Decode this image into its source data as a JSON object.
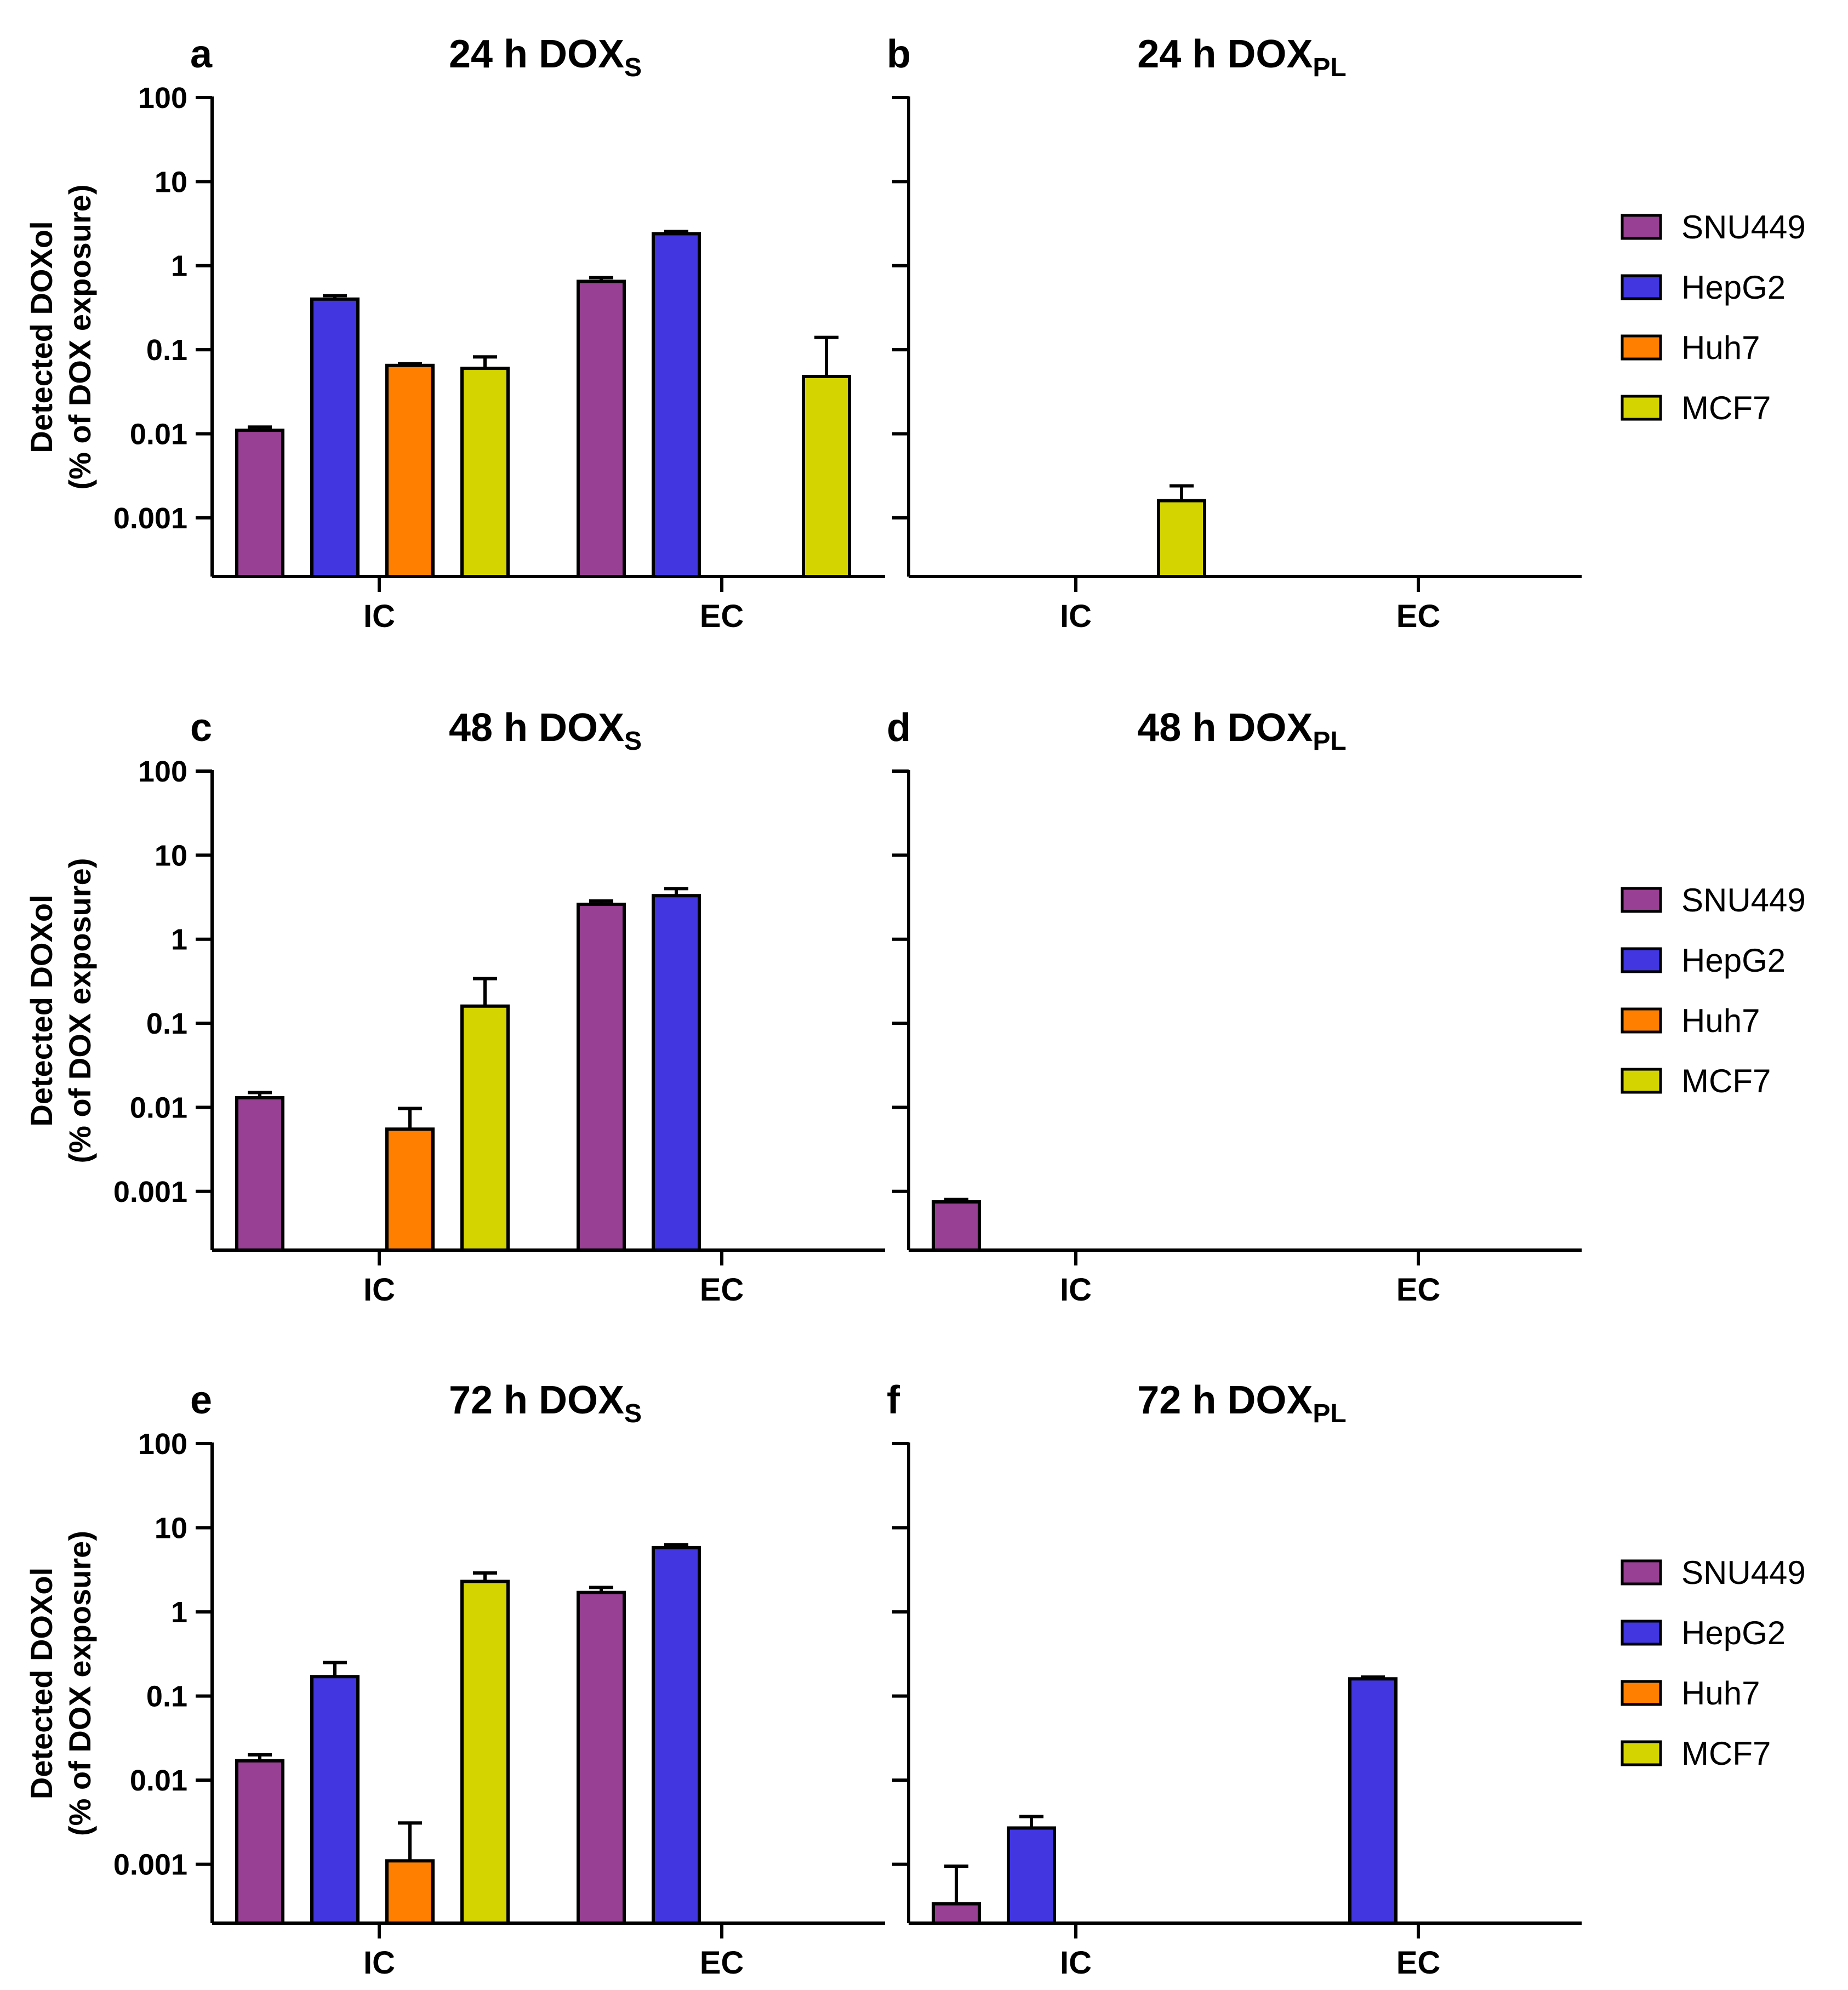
{
  "figure": {
    "y_axis_label_line1": "Detected DOXol",
    "y_axis_label_line2": "(% of DOX exposure)"
  },
  "chart_data": [
    {
      "type": "bar",
      "scale": "log",
      "panel": "a",
      "title": "24 h DOX",
      "title_subscript": "S",
      "categories": [
        "IC",
        "EC"
      ],
      "yticks": [
        "0.001",
        "0.01",
        "0.1",
        "1",
        "10",
        "100"
      ],
      "ylim": [
        0.0002,
        100
      ],
      "series": [
        {
          "name": "SNU449",
          "values": [
            0.011,
            0.65
          ],
          "errors": [
            0.012,
            0.72
          ]
        },
        {
          "name": "HepG2",
          "values": [
            0.4,
            2.4
          ],
          "errors": [
            0.44,
            2.55
          ]
        },
        {
          "name": "Huh7",
          "values": [
            0.065,
            null
          ],
          "errors": [
            0.068,
            null
          ]
        },
        {
          "name": "MCF7",
          "values": [
            0.06,
            0.048
          ],
          "errors": [
            0.082,
            0.14
          ]
        }
      ]
    },
    {
      "type": "bar",
      "scale": "log",
      "panel": "b",
      "title": "24 h DOX",
      "title_subscript": "PL",
      "categories": [
        "IC",
        "EC"
      ],
      "ylim": [
        0.0002,
        100
      ],
      "series": [
        {
          "name": "SNU449",
          "values": [
            null,
            null
          ],
          "errors": [
            null,
            null
          ]
        },
        {
          "name": "HepG2",
          "values": [
            null,
            null
          ],
          "errors": [
            null,
            null
          ]
        },
        {
          "name": "Huh7",
          "values": [
            null,
            null
          ],
          "errors": [
            null,
            null
          ]
        },
        {
          "name": "MCF7",
          "values": [
            0.0016,
            null
          ],
          "errors": [
            0.0024,
            null
          ]
        }
      ]
    },
    {
      "type": "bar",
      "scale": "log",
      "panel": "c",
      "title": "48 h DOX",
      "title_subscript": "S",
      "categories": [
        "IC",
        "EC"
      ],
      "yticks": [
        "0.001",
        "0.01",
        "0.1",
        "1",
        "10",
        "100"
      ],
      "ylim": [
        0.0002,
        100
      ],
      "series": [
        {
          "name": "SNU449",
          "values": [
            0.013,
            2.6
          ],
          "errors": [
            0.015,
            2.85
          ]
        },
        {
          "name": "HepG2",
          "values": [
            null,
            3.3
          ],
          "errors": [
            null,
            4.0
          ]
        },
        {
          "name": "Huh7",
          "values": [
            0.0055,
            null
          ],
          "errors": [
            0.0097,
            null
          ]
        },
        {
          "name": "MCF7",
          "values": [
            0.16,
            null
          ],
          "errors": [
            0.34,
            null
          ]
        }
      ]
    },
    {
      "type": "bar",
      "scale": "log",
      "panel": "d",
      "title": "48 h DOX",
      "title_subscript": "PL",
      "categories": [
        "IC",
        "EC"
      ],
      "ylim": [
        0.0002,
        100
      ],
      "series": [
        {
          "name": "SNU449",
          "values": [
            0.00075,
            null
          ],
          "errors": [
            0.0008,
            null
          ]
        },
        {
          "name": "HepG2",
          "values": [
            null,
            null
          ],
          "errors": [
            null,
            null
          ]
        },
        {
          "name": "Huh7",
          "values": [
            null,
            null
          ],
          "errors": [
            null,
            null
          ]
        },
        {
          "name": "MCF7",
          "values": [
            null,
            null
          ],
          "errors": [
            null,
            null
          ]
        }
      ]
    },
    {
      "type": "bar",
      "scale": "log",
      "panel": "e",
      "title": "72 h DOX",
      "title_subscript": "S",
      "categories": [
        "IC",
        "EC"
      ],
      "yticks": [
        "0.001",
        "0.01",
        "0.1",
        "1",
        "10",
        "100"
      ],
      "ylim": [
        0.0002,
        100
      ],
      "series": [
        {
          "name": "SNU449",
          "values": [
            0.017,
            1.7
          ],
          "errors": [
            0.02,
            1.95
          ]
        },
        {
          "name": "HepG2",
          "values": [
            0.17,
            5.8
          ],
          "errors": [
            0.25,
            6.3
          ]
        },
        {
          "name": "Huh7",
          "values": [
            0.0011,
            null
          ],
          "errors": [
            0.0031,
            null
          ]
        },
        {
          "name": "MCF7",
          "values": [
            2.3,
            null
          ],
          "errors": [
            2.9,
            null
          ]
        }
      ]
    },
    {
      "type": "bar",
      "scale": "log",
      "panel": "f",
      "title": "72 h DOX",
      "title_subscript": "PL",
      "categories": [
        "IC",
        "EC"
      ],
      "ylim": [
        0.0002,
        100
      ],
      "series": [
        {
          "name": "SNU449",
          "values": [
            0.00034,
            null
          ],
          "errors": [
            0.00095,
            null
          ]
        },
        {
          "name": "HepG2",
          "values": [
            0.0027,
            0.16
          ],
          "errors": [
            0.0037,
            0.168
          ]
        },
        {
          "name": "Huh7",
          "values": [
            null,
            null
          ],
          "errors": [
            null,
            null
          ]
        },
        {
          "name": "MCF7",
          "values": [
            null,
            null
          ],
          "errors": [
            null,
            null
          ]
        }
      ]
    }
  ],
  "legend": {
    "entries": [
      {
        "label": "SNU449",
        "color": "#984093"
      },
      {
        "label": "HepG2",
        "color": "#4136E0"
      },
      {
        "label": "Huh7",
        "color": "#FF8000"
      },
      {
        "label": "MCF7",
        "color": "#D4D400"
      }
    ]
  },
  "colors": {
    "SNU449": "#984093",
    "HepG2": "#4136E0",
    "Huh7": "#FF8000",
    "MCF7": "#D4D400",
    "axis": "#000000"
  }
}
